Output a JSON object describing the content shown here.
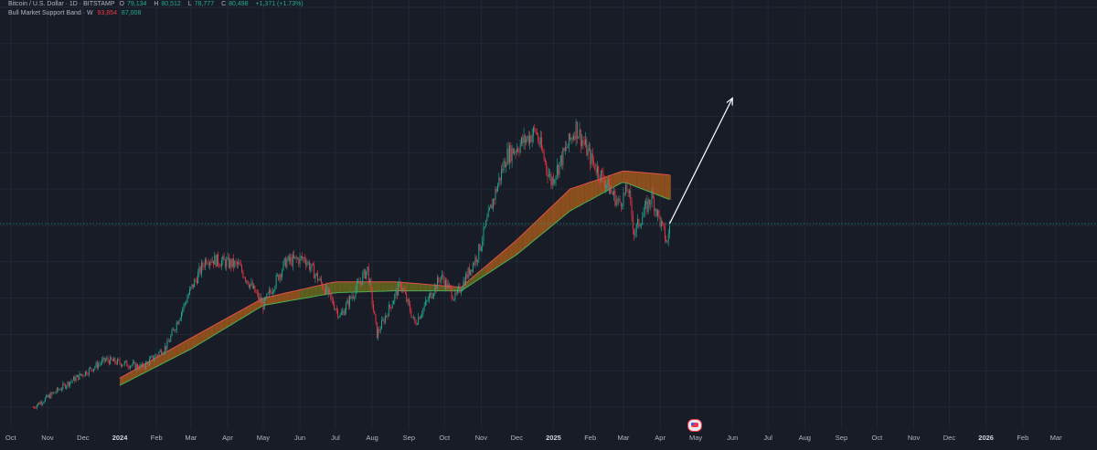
{
  "legend": {
    "symbol": "Bitcoin / U.S. Dollar · 1D · BITSTAMP",
    "ohlc": [
      {
        "label": "O",
        "value": "79,134"
      },
      {
        "label": "H",
        "value": "80,512"
      },
      {
        "label": "L",
        "value": "78,777"
      },
      {
        "label": "C",
        "value": "80,498"
      },
      {
        "label": "",
        "value": "+1,371 (+1.73%)"
      }
    ],
    "band_title": "Bull Market Support Band · W",
    "band_value_1": "93,854",
    "band_value_2": "87,008"
  },
  "colors": {
    "background": "#181c27",
    "grid": "#232734",
    "up": "#22ab94",
    "down": "#f23645",
    "band_fill_olive": "#6b6a1e",
    "band_fill_orange": "#a0581d",
    "band_line_green": "#4caf50",
    "band_line_red": "#e0524a",
    "projection_arrow": "#ffffff",
    "current_price_line": "#22ab94"
  },
  "chart_data": {
    "type": "candlestick",
    "x_axis": {
      "labels": [
        "Oct",
        "Nov",
        "Dec",
        "2024",
        "Feb",
        "Mar",
        "Apr",
        "May",
        "Jun",
        "Jul",
        "Aug",
        "Sep",
        "Oct",
        "Nov",
        "Dec",
        "2025",
        "Feb",
        "Mar",
        "Apr",
        "May",
        "Jun",
        "Jul",
        "Aug",
        "Sep",
        "Oct",
        "Nov",
        "Dec",
        "2026",
        "Feb",
        "Mar"
      ],
      "year_labels": [
        "2024",
        "2025",
        "2026"
      ],
      "range": [
        "2023-10-01",
        "2026-03-31"
      ]
    },
    "grid": true,
    "series": [
      {
        "name": "Bitcoin / U.S. Dollar",
        "kind": "candles",
        "approx_close_path": [
          [
            "2023-10-20",
            30000
          ],
          [
            "2023-11-20",
            37000
          ],
          [
            "2023-12-20",
            43000
          ],
          [
            "2024-01-20",
            41000
          ],
          [
            "2024-02-10",
            47000
          ],
          [
            "2024-02-28",
            61000
          ],
          [
            "2024-03-14",
            71000
          ],
          [
            "2024-04-10",
            69000
          ],
          [
            "2024-05-01",
            58000
          ],
          [
            "2024-05-20",
            70000
          ],
          [
            "2024-06-05",
            71000
          ],
          [
            "2024-06-25",
            61000
          ],
          [
            "2024-07-05",
            55000
          ],
          [
            "2024-07-28",
            68000
          ],
          [
            "2024-08-05",
            50000
          ],
          [
            "2024-08-25",
            64000
          ],
          [
            "2024-09-06",
            53000
          ],
          [
            "2024-09-28",
            66000
          ],
          [
            "2024-10-10",
            60000
          ],
          [
            "2024-10-29",
            72000
          ],
          [
            "2024-11-12",
            88000
          ],
          [
            "2024-11-22",
            99000
          ],
          [
            "2024-12-17",
            106000
          ],
          [
            "2024-12-30",
            92000
          ],
          [
            "2025-01-20",
            107000
          ],
          [
            "2025-02-02",
            98000
          ],
          [
            "2025-02-25",
            86000
          ],
          [
            "2025-03-05",
            90000
          ],
          [
            "2025-03-10",
            78000
          ],
          [
            "2025-03-25",
            88000
          ],
          [
            "2025-04-07",
            75000
          ],
          [
            "2025-04-09",
            80498
          ]
        ]
      },
      {
        "name": "Bull Market Support Band",
        "kind": "band",
        "approx_upper": [
          [
            "2024-01-01",
            38000
          ],
          [
            "2024-03-01",
            49000
          ],
          [
            "2024-05-01",
            60000
          ],
          [
            "2024-07-01",
            64500
          ],
          [
            "2024-08-20",
            64500
          ],
          [
            "2024-10-15",
            63000
          ],
          [
            "2024-12-01",
            76000
          ],
          [
            "2025-01-15",
            90000
          ],
          [
            "2025-03-01",
            95000
          ],
          [
            "2025-04-10",
            93854
          ]
        ],
        "approx_lower": [
          [
            "2024-01-01",
            36000
          ],
          [
            "2024-03-01",
            46000
          ],
          [
            "2024-05-01",
            58000
          ],
          [
            "2024-07-01",
            61500
          ],
          [
            "2024-08-20",
            62000
          ],
          [
            "2024-10-15",
            62000
          ],
          [
            "2024-12-01",
            72000
          ],
          [
            "2025-01-15",
            84000
          ],
          [
            "2025-03-01",
            92000
          ],
          [
            "2025-04-10",
            87008
          ]
        ]
      }
    ],
    "annotations": [
      {
        "type": "arrow",
        "from": [
          "2025-04-09",
          80500
        ],
        "to": [
          "2025-06-01",
          115000
        ]
      }
    ],
    "current_price": 80498
  }
}
